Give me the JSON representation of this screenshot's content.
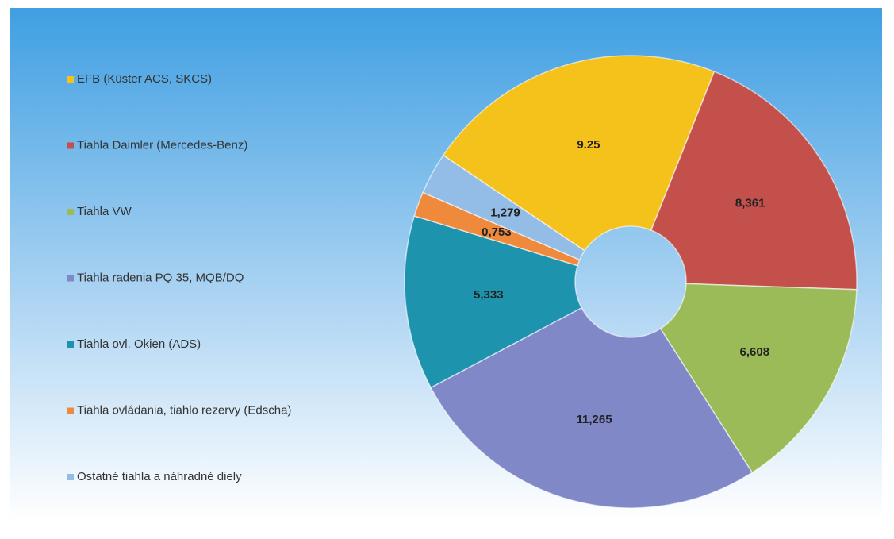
{
  "chart_data": {
    "type": "donut",
    "categories": [
      "EFB (Küster ACS, SKCS)",
      "Tiahla Daimler (Mercedes-Benz)",
      "Tiahla VW",
      "Tiahla radenia PQ 35, MQB/DQ",
      "Tiahla ovl. Okien (ADS)",
      "Tiahla ovládania, tiahlo rezervy (Edscha)",
      "Ostatné tiahla a náhradné diely"
    ],
    "values": [
      9.25,
      8.361,
      6.608,
      11.265,
      5.333,
      0.753,
      1.279
    ],
    "value_labels": [
      "9.25",
      "8,361",
      "6,608",
      "11,265",
      "5,333",
      "0,753",
      "1,279"
    ],
    "colors": [
      "#f5c21b",
      "#c4504b",
      "#9bbb59",
      "#8088c8",
      "#1e93ad",
      "#ef8a3c",
      "#93bde6"
    ],
    "legend": "left"
  }
}
